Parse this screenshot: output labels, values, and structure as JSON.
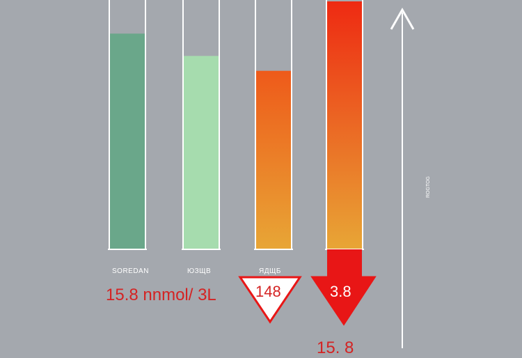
{
  "chart_data": {
    "type": "bar",
    "categories": [
      "SOREDAN",
      "ЮЗЩВ",
      "ЯДЩБ",
      ""
    ],
    "series": [
      {
        "values": [
          0.87,
          0.78,
          0.72,
          1.0
        ]
      }
    ],
    "ylim": [
      0,
      1
    ],
    "bar_colors": [
      [
        "#6aa78a",
        "#6aa78a"
      ],
      [
        "#a6dcae",
        "#a6dcae"
      ],
      [
        "#ee5a1a",
        "#e8a636"
      ],
      [
        "#ee2a12",
        "#e8a636"
      ]
    ],
    "axis_label": "ROGTOG",
    "annotations": [
      {
        "text": "15.8 nnmol/ 3L"
      },
      {
        "text": "148"
      },
      {
        "text": "3.8"
      },
      {
        "text": "15. 8"
      }
    ],
    "marker_color": "#e81616",
    "grid": false,
    "legend": "none"
  }
}
